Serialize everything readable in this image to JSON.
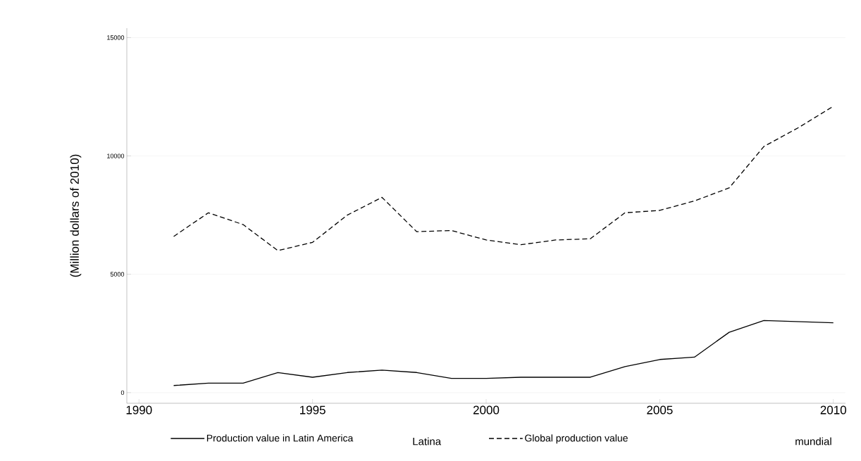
{
  "chart_data": {
    "type": "line",
    "ylabel": "(Million dollars of 2010)",
    "x": [
      1991,
      1992,
      1993,
      1994,
      1995,
      1996,
      1997,
      1998,
      1999,
      2000,
      2001,
      2002,
      2003,
      2004,
      2005,
      2006,
      2007,
      2008,
      2009,
      2010
    ],
    "series": [
      {
        "name": "Production value in Latin America",
        "color": "#000000",
        "line_style": "solid",
        "values": [
          300,
          400,
          400,
          850,
          650,
          850,
          950,
          850,
          600,
          600,
          650,
          650,
          650,
          1100,
          1400,
          1500,
          2550,
          3050,
          3000,
          2950
        ]
      },
      {
        "name": "Global production value",
        "color": "#000000",
        "line_style": "dashed",
        "values": [
          6600,
          7600,
          7100,
          6000,
          6350,
          7500,
          8250,
          6800,
          6850,
          6450,
          6250,
          6450,
          6500,
          7600,
          7700,
          8100,
          8650,
          10400,
          11200,
          12100
        ]
      }
    ],
    "xlim": [
      1989.65,
      2010.35
    ],
    "ylim": [
      -450,
      15400
    ],
    "xticks": [
      1990,
      1995,
      2000,
      2005,
      2010
    ],
    "yticks": [
      0,
      5000,
      10000,
      15000
    ],
    "grid": "y",
    "legend": "bottom",
    "marker": "none",
    "annotations": [
      "Latina",
      "mundial"
    ]
  }
}
